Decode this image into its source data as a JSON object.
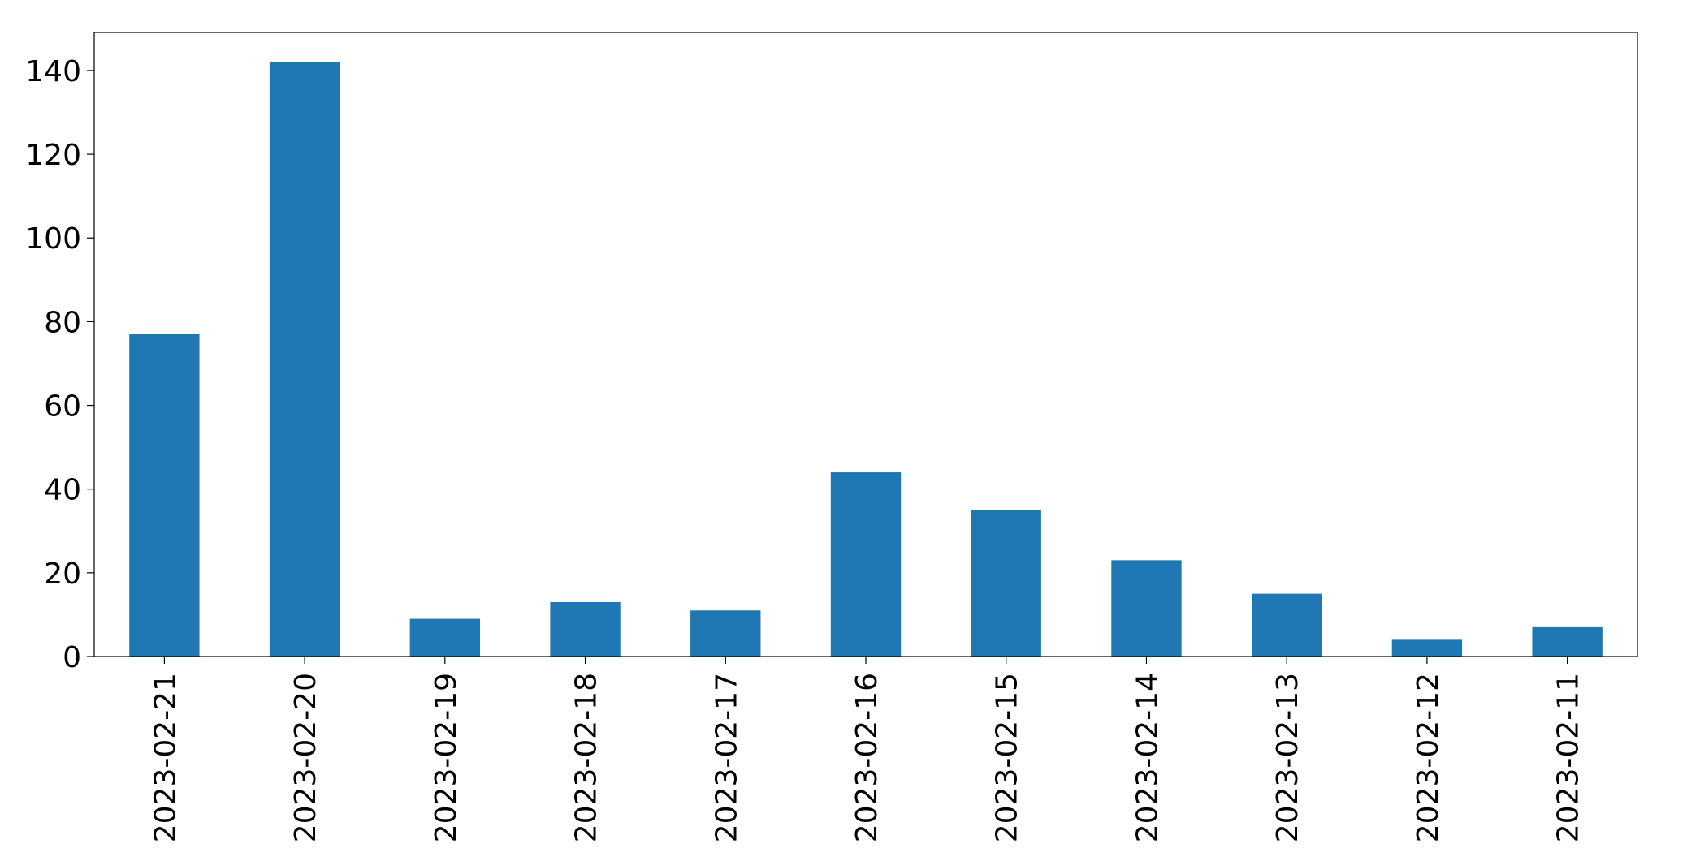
{
  "chart_data": {
    "type": "bar",
    "categories": [
      "2023-02-21",
      "2023-02-20",
      "2023-02-19",
      "2023-02-18",
      "2023-02-17",
      "2023-02-16",
      "2023-02-15",
      "2023-02-14",
      "2023-02-13",
      "2023-02-12",
      "2023-02-11"
    ],
    "values": [
      77,
      142,
      9,
      13,
      11,
      44,
      35,
      23,
      15,
      4,
      7
    ],
    "color": "#1f77b4",
    "ylim": [
      0,
      149.1
    ],
    "yticks": [
      0,
      20,
      40,
      60,
      80,
      100,
      120,
      140
    ],
    "grid": false
  }
}
